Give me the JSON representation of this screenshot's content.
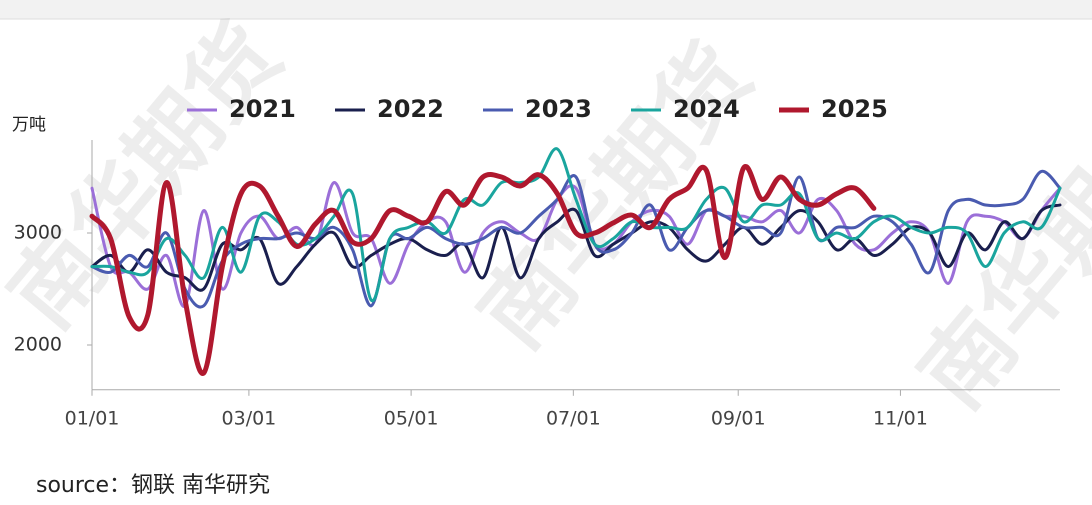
{
  "chart_data": {
    "type": "line",
    "y_label": "万吨",
    "source": "source：钢联 南华研究",
    "watermark": "南华期货",
    "legend": "top",
    "grid": false,
    "xlim": [
      0,
      364
    ],
    "xticks": [
      {
        "value": 0,
        "label": "01/01"
      },
      {
        "value": 59,
        "label": "03/01"
      },
      {
        "value": 120,
        "label": "05/01"
      },
      {
        "value": 181,
        "label": "07/01"
      },
      {
        "value": 243,
        "label": "09/01"
      },
      {
        "value": 304,
        "label": "11/01"
      }
    ],
    "ylim": [
      1600,
      3850
    ],
    "yticks": [
      2000,
      3000
    ],
    "x": [
      0,
      7,
      14,
      21,
      28,
      35,
      42,
      49,
      56,
      63,
      70,
      77,
      84,
      91,
      98,
      105,
      112,
      119,
      126,
      133,
      140,
      147,
      154,
      161,
      168,
      175,
      182,
      189,
      196,
      203,
      210,
      217,
      224,
      231,
      238,
      245,
      252,
      259,
      266,
      273,
      280,
      287,
      294,
      301,
      308,
      315,
      322,
      329,
      336,
      343,
      350,
      357,
      364
    ],
    "series": [
      {
        "name": "2021",
        "color": "#9b6fd8",
        "width": 3,
        "values": [
          3400,
          2700,
          2650,
          2500,
          2800,
          2350,
          3200,
          2500,
          3000,
          3150,
          2950,
          3050,
          2900,
          3450,
          3000,
          2950,
          2550,
          2900,
          3100,
          3100,
          2650,
          3000,
          3100,
          3000,
          2950,
          3300,
          3400,
          2900,
          2900,
          3100,
          3200,
          3150,
          2900,
          3200,
          3150,
          3150,
          3100,
          3200,
          3000,
          3300,
          3200,
          2900,
          2850,
          3000,
          3100,
          3000,
          2550,
          3100,
          3150,
          3100,
          2950,
          3200,
          3400
        ]
      },
      {
        "name": "2022",
        "color": "#1a1f4e",
        "width": 3,
        "values": [
          2700,
          2800,
          2650,
          2850,
          2650,
          2600,
          2500,
          2900,
          2850,
          2950,
          2550,
          2700,
          2900,
          3000,
          2700,
          2800,
          2900,
          2950,
          2850,
          2800,
          2900,
          2600,
          3050,
          2600,
          2950,
          3100,
          3200,
          2800,
          2900,
          3000,
          3100,
          3050,
          2850,
          2750,
          2900,
          3050,
          2900,
          3050,
          3200,
          3100,
          2850,
          2950,
          2800,
          2900,
          3050,
          3000,
          2700,
          3000,
          2850,
          3100,
          2950,
          3200,
          3250
        ]
      },
      {
        "name": "2023",
        "color": "#4a5bb0",
        "width": 3,
        "values": [
          2700,
          2650,
          2800,
          2700,
          3000,
          2500,
          2350,
          2750,
          2900,
          2950,
          2950,
          3000,
          2950,
          3050,
          2850,
          2350,
          2950,
          2950,
          3050,
          2950,
          2900,
          2950,
          3050,
          3000,
          3150,
          3300,
          3500,
          2900,
          2850,
          3000,
          3250,
          2850,
          3050,
          3200,
          3150,
          3050,
          3050,
          3000,
          3500,
          2950,
          3050,
          3050,
          3150,
          3100,
          2900,
          2650,
          3200,
          3300,
          3250,
          3250,
          3300,
          3550,
          3400
        ]
      },
      {
        "name": "2024",
        "color": "#1aa59e",
        "width": 3,
        "values": [
          2700,
          2700,
          2650,
          2650,
          2950,
          2800,
          2600,
          3050,
          2650,
          3150,
          3100,
          2900,
          2950,
          3150,
          3350,
          2400,
          2950,
          3050,
          3100,
          3000,
          3300,
          3250,
          3450,
          3450,
          3500,
          3750,
          3300,
          2900,
          2950,
          3100,
          3050,
          3050,
          3050,
          3300,
          3400,
          3100,
          3250,
          3250,
          3350,
          2950,
          3000,
          2950,
          3100,
          3150,
          3050,
          3000,
          3050,
          3000,
          2700,
          3000,
          3100,
          3050,
          3400
        ]
      },
      {
        "name": "2025",
        "color": "#b0182e",
        "width": 5,
        "values": [
          3150,
          2950,
          2250,
          2270,
          3450,
          2400,
          1750,
          2700,
          3350,
          3420,
          3150,
          2880,
          3080,
          3200,
          2920,
          2950,
          3200,
          3150,
          3100,
          3370,
          3250,
          3500,
          3500,
          3420,
          3520,
          3350,
          3000,
          3000,
          3090,
          3160,
          3050,
          3300,
          3400,
          3560,
          2780,
          3580,
          3300,
          3500,
          3300,
          3250,
          3350,
          3400,
          3220,
          null,
          null,
          null,
          null,
          null,
          null,
          null,
          null,
          null,
          null
        ]
      }
    ]
  }
}
